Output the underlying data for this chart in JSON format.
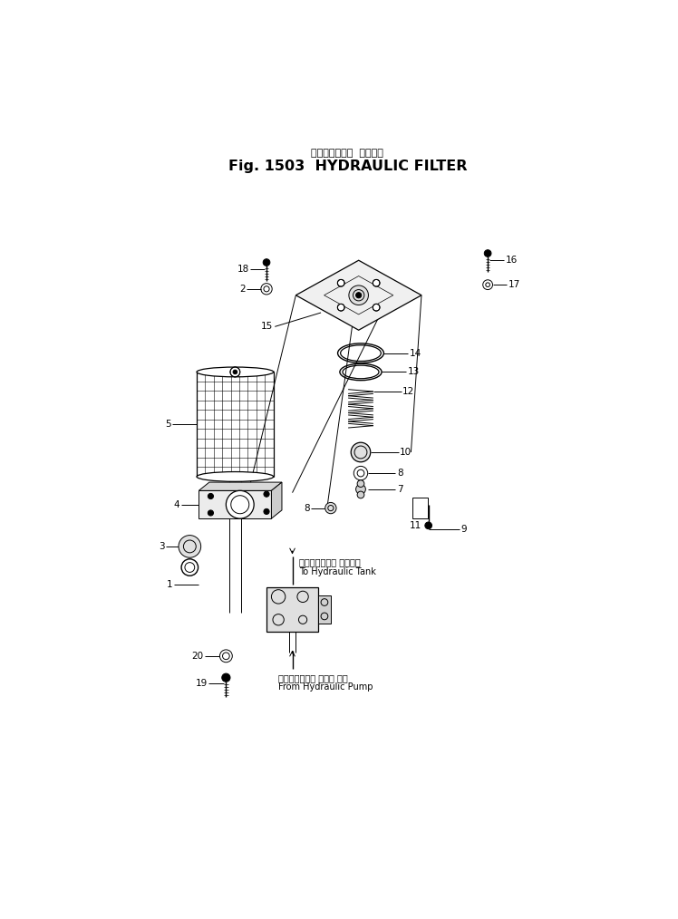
{
  "title_japanese": "ハイドロリック  フィルタ",
  "title_english": "Fig. 1503  HYDRAULIC FILTER",
  "bg_color": "#ffffff",
  "to_tank_japanese": "ハイドロリック タンクへ",
  "to_tank_english": "To Hydraulic Tank",
  "from_pump_japanese": "ハイドロリック ポンプ から",
  "from_pump_english": "From Hydraulic Pump",
  "label_fs": 7.5,
  "annot_fs": 7.0,
  "title_fs": 11.5,
  "subtitle_fs": 8.0
}
